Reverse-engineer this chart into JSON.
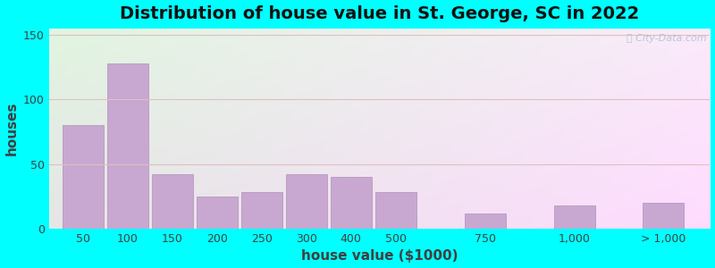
{
  "title": "Distribution of house value in St. George, SC in 2022",
  "xlabel": "house value ($1000)",
  "ylabel": "houses",
  "bar_color": "#c8a8d0",
  "bar_edge_color": "#b898c0",
  "outer_bg": "#00ffff",
  "ylim": [
    0,
    155
  ],
  "yticks": [
    0,
    50,
    100,
    150
  ],
  "categories": [
    "50",
    "100",
    "150",
    "200",
    "250",
    "300",
    "400",
    "500",
    "750",
    "1,000",
    "> 1,000"
  ],
  "values": [
    80,
    128,
    42,
    25,
    28,
    42,
    40,
    28,
    12,
    18,
    20
  ],
  "bar_positions": [
    0,
    1,
    2,
    3,
    4,
    5,
    6,
    7,
    9,
    11,
    13
  ],
  "grid_color": "#dfc0c0",
  "title_fontsize": 14,
  "label_fontsize": 11,
  "tick_fontsize": 9,
  "watermark": "City-Data.com",
  "xlim": [
    -0.3,
    14.5
  ]
}
